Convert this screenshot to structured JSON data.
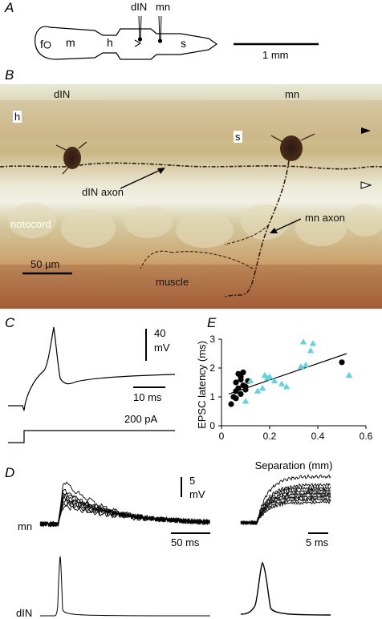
{
  "panels": {
    "a": {
      "letter": "A",
      "labels": {
        "f": "f",
        "m": "m",
        "h": "h",
        "s": "s",
        "din": "dIN",
        "mn": "mn"
      },
      "scalebar": "1 mm"
    },
    "b": {
      "letter": "B",
      "labels": {
        "din": "dIN",
        "mn": "mn",
        "h": "h",
        "s": "s",
        "din_axon": "dIN axon",
        "mn_axon": "mn axon",
        "notocord": "notocord",
        "muscle": "muscle",
        "scalebar": "50 µm"
      },
      "colors": {
        "tissue": "#c9b07c",
        "dark": "#6b3a1e"
      }
    },
    "c": {
      "letter": "C",
      "scale_v": "40",
      "scale_v_unit": "mV",
      "scale_t": "10 ms",
      "current": "200 pA"
    },
    "d": {
      "letter": "D",
      "mn_label": "mn",
      "din_label": "dIN",
      "scale_v": "5",
      "scale_v_unit": "mV",
      "scale_t_left": "50 ms",
      "scale_t_right": "5 ms"
    }
  },
  "chart_data": {
    "type": "scatter",
    "panel_letter": "E",
    "xlabel": "Separation (mm)",
    "ylabel": "EPSC latency (ms)",
    "xlim": [
      0,
      0.6
    ],
    "ylim": [
      0,
      3
    ],
    "xticks": [
      "0",
      "0.2",
      "0.4",
      "0.6"
    ],
    "yticks": [
      "0",
      "1",
      "2",
      "3"
    ],
    "series": [
      {
        "marker": "circle",
        "color": "#000000",
        "x": [
          0.04,
          0.05,
          0.06,
          0.06,
          0.07,
          0.07,
          0.08,
          0.08,
          0.09,
          0.09,
          0.1,
          0.1,
          0.11,
          0.06,
          0.08,
          0.5
        ],
        "y": [
          0.75,
          1.0,
          1.2,
          1.5,
          1.3,
          1.8,
          1.1,
          1.6,
          1.85,
          1.4,
          1.35,
          1.25,
          1.55,
          0.95,
          1.7,
          2.2
        ]
      },
      {
        "marker": "triangle",
        "color": "#5fd3e0",
        "x": [
          0.1,
          0.12,
          0.15,
          0.17,
          0.18,
          0.19,
          0.2,
          0.22,
          0.25,
          0.27,
          0.33,
          0.34,
          0.35,
          0.37,
          0.38,
          0.53
        ],
        "y": [
          0.85,
          1.55,
          1.2,
          1.3,
          1.75,
          1.65,
          1.7,
          1.55,
          1.45,
          1.35,
          2.05,
          2.9,
          2.1,
          2.6,
          2.85,
          1.75
        ]
      }
    ],
    "fit_line": {
      "x": [
        0.03,
        0.52
      ],
      "y": [
        1.1,
        2.5
      ]
    }
  }
}
